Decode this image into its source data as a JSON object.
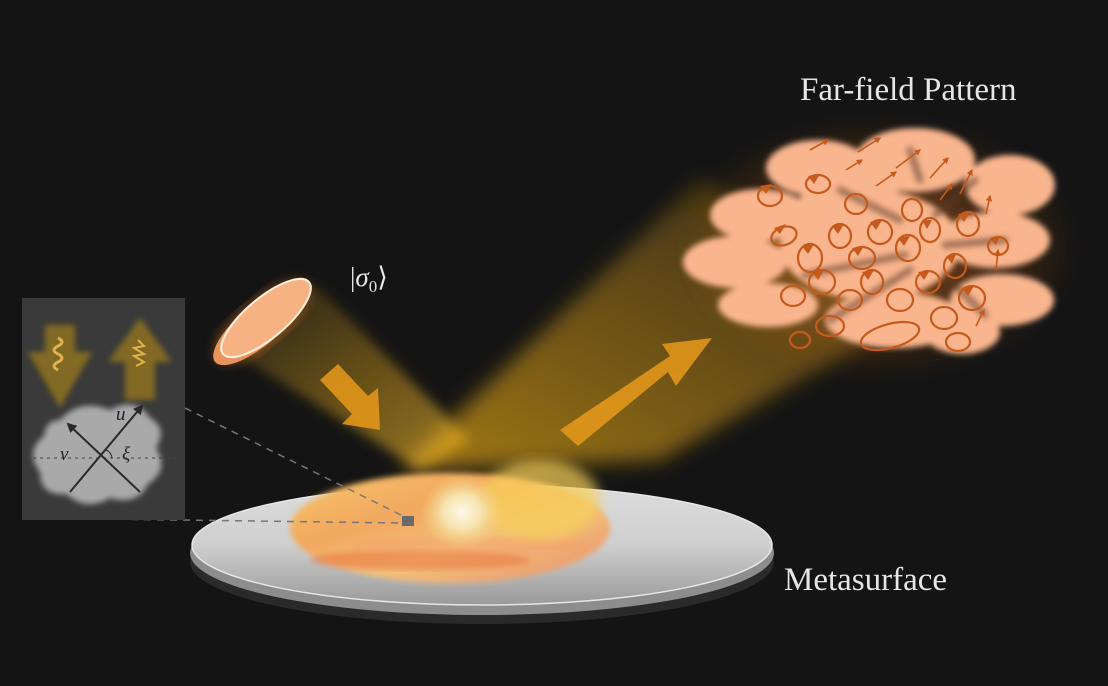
{
  "labels": {
    "far_field": "Far-field Pattern",
    "metasurface": "Metasurface",
    "state_ket_open": "|",
    "state_symbol": "σ",
    "state_subscript": "0",
    "state_ket_close": "⟩"
  },
  "inset": {
    "axis_u": "u",
    "axis_v": "v",
    "axis_xi": "ξ"
  },
  "colors": {
    "background": "#141414",
    "beam": "#f2b21a",
    "far_field_fill": "#f9b58e",
    "polarization_marks": "#c65a1c",
    "inset_panel": "#3a3a3a",
    "polarizer": "#f7a56c"
  }
}
